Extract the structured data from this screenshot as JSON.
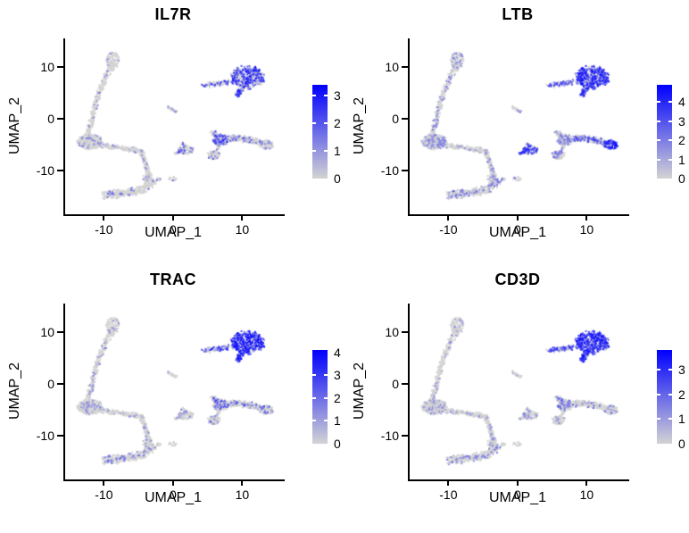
{
  "figure": {
    "kind": "single-cell feature plot grid",
    "genes": [
      "IL7R",
      "LTB",
      "TRAC",
      "CD3D"
    ]
  },
  "chart_data": {
    "type": "scatter",
    "xlabel": "UMAP_1",
    "ylabel": "UMAP_2",
    "x_ticks": [
      -10,
      0,
      10
    ],
    "y_ticks": [
      10,
      0,
      -10
    ],
    "xlim": [
      -15.6,
      16.1
    ],
    "ylim": [
      -18.5,
      15.5
    ],
    "grid": false,
    "point_color_low": "#D3D3D3",
    "point_color_high": "#0000FF",
    "legend_position": "right",
    "panels": [
      {
        "title": "IL7R",
        "colorbar_max": 3.4,
        "colorbar_ticks": [
          0,
          1,
          2,
          3
        ],
        "expression": {
          "leftArm": [
            0.06,
            0.4,
            1.6
          ],
          "leftBlob": [
            0.07,
            0.4,
            1.6
          ],
          "horizArm": [
            0.05,
            0.4,
            1.3
          ],
          "descArm": [
            0.07,
            0.4,
            1.6
          ],
          "bottomBlob": [
            0.08,
            0.4,
            2.0
          ],
          "sliver": [
            0.08,
            0.4,
            1.2
          ],
          "midCluster": [
            0.2,
            0.6,
            2.2
          ],
          "head": [
            0.5,
            0.8,
            3.2
          ],
          "neck": [
            0.4,
            0.8,
            2.6
          ],
          "rightBlob": [
            0.3,
            0.6,
            2.6
          ],
          "lowerLobe": [
            0.18,
            0.5,
            2.0
          ],
          "rightArm": [
            0.15,
            0.5,
            2.2
          ],
          "rightTip": [
            0.15,
            0.5,
            2.0
          ]
        }
      },
      {
        "title": "LTB",
        "colorbar_max": 4.9,
        "colorbar_ticks": [
          0,
          1,
          2,
          3,
          4
        ],
        "expression": {
          "leftArm": [
            0.18,
            0.5,
            2.2
          ],
          "leftBlob": [
            0.22,
            0.5,
            2.2
          ],
          "horizArm": [
            0.12,
            0.5,
            1.8
          ],
          "descArm": [
            0.16,
            0.5,
            2.2
          ],
          "bottomBlob": [
            0.2,
            0.5,
            2.6
          ],
          "sliver": [
            0.2,
            0.6,
            2.2
          ],
          "midCluster": [
            0.52,
            1.0,
            4.2
          ],
          "head": [
            0.78,
            1.2,
            4.6
          ],
          "neck": [
            0.6,
            1.0,
            3.6
          ],
          "rightBlob": [
            0.28,
            0.6,
            2.6
          ],
          "lowerLobe": [
            0.25,
            0.6,
            2.6
          ],
          "rightArm": [
            0.4,
            0.8,
            3.8
          ],
          "rightTip": [
            0.85,
            1.5,
            4.7
          ]
        }
      },
      {
        "title": "TRAC",
        "colorbar_max": 4.1,
        "colorbar_ticks": [
          0,
          1,
          2,
          3,
          4
        ],
        "expression": {
          "leftArm": [
            0.09,
            0.4,
            1.6
          ],
          "leftBlob": [
            0.11,
            0.4,
            1.6
          ],
          "horizArm": [
            0.07,
            0.4,
            1.4
          ],
          "descArm": [
            0.1,
            0.4,
            1.8
          ],
          "bottomBlob": [
            0.13,
            0.4,
            2.2
          ],
          "sliver": [
            0.1,
            0.4,
            1.2
          ],
          "midCluster": [
            0.16,
            0.5,
            2.0
          ],
          "head": [
            0.82,
            1.4,
            4.0
          ],
          "neck": [
            0.55,
            1.0,
            3.2
          ],
          "rightBlob": [
            0.26,
            0.6,
            3.0
          ],
          "lowerLobe": [
            0.16,
            0.5,
            2.2
          ],
          "rightArm": [
            0.16,
            0.5,
            2.6
          ],
          "rightTip": [
            0.2,
            0.6,
            2.6
          ]
        }
      },
      {
        "title": "CD3D",
        "colorbar_max": 3.8,
        "colorbar_ticks": [
          0,
          1,
          2,
          3
        ],
        "expression": {
          "leftArm": [
            0.11,
            0.3,
            1.5
          ],
          "leftBlob": [
            0.13,
            0.3,
            1.5
          ],
          "horizArm": [
            0.09,
            0.3,
            1.3
          ],
          "descArm": [
            0.11,
            0.3,
            1.6
          ],
          "bottomBlob": [
            0.16,
            0.3,
            1.8
          ],
          "sliver": [
            0.1,
            0.3,
            1.1
          ],
          "midCluster": [
            0.16,
            0.4,
            1.6
          ],
          "head": [
            0.88,
            1.4,
            3.6
          ],
          "neck": [
            0.6,
            1.0,
            3.0
          ],
          "rightBlob": [
            0.22,
            0.5,
            2.2
          ],
          "lowerLobe": [
            0.13,
            0.4,
            1.6
          ],
          "rightArm": [
            0.13,
            0.4,
            2.0
          ],
          "rightTip": [
            0.12,
            0.4,
            1.6
          ]
        }
      }
    ],
    "clusters": [
      {
        "g": "leftArm",
        "shape": "ellipse",
        "c": [
          -8.7,
          11.2
        ],
        "r": [
          1.0,
          1.8
        ],
        "n": 90
      },
      {
        "g": "leftArm",
        "shape": "capsule",
        "pts": [
          [
            -8.8,
            11.0
          ],
          [
            -9.3,
            9.3
          ],
          [
            -10.0,
            7.2
          ],
          [
            -10.7,
            4.8
          ],
          [
            -11.2,
            2.6
          ],
          [
            -11.6,
            0.6
          ],
          [
            -12.0,
            -1.4
          ],
          [
            -12.2,
            -3.1
          ]
        ],
        "w": 0.55,
        "n": 260
      },
      {
        "g": "leftBlob",
        "shape": "ellipse",
        "c": [
          -12.0,
          -4.5
        ],
        "r": [
          1.75,
          1.4
        ],
        "n": 335
      },
      {
        "g": "horizArm",
        "shape": "capsule",
        "pts": [
          [
            -10.3,
            -5.2
          ],
          [
            -8.5,
            -5.5
          ],
          [
            -6.8,
            -5.8
          ],
          [
            -5.2,
            -6.2
          ],
          [
            -4.5,
            -6.5
          ]
        ],
        "w": 0.5,
        "n": 150
      },
      {
        "g": "descArm",
        "shape": "capsule",
        "pts": [
          [
            -4.5,
            -6.6
          ],
          [
            -4.2,
            -7.8
          ],
          [
            -3.9,
            -9.2
          ],
          [
            -3.6,
            -10.6
          ],
          [
            -3.4,
            -11.6
          ]
        ],
        "w": 0.5,
        "n": 125
      },
      {
        "g": "descArm",
        "shape": "ellipse",
        "c": [
          -3.6,
          -11.4
        ],
        "r": [
          0.8,
          0.7
        ],
        "n": 40
      },
      {
        "g": "bottomBlob",
        "shape": "capsule",
        "pts": [
          [
            -10.1,
            -14.7
          ],
          [
            -8.5,
            -14.6
          ],
          [
            -6.8,
            -14.3
          ],
          [
            -5.3,
            -14.0
          ],
          [
            -4.3,
            -13.5
          ],
          [
            -3.4,
            -12.6
          ],
          [
            -2.7,
            -11.9
          ]
        ],
        "w": 0.8,
        "n": 360
      },
      {
        "g": "bottomBlob",
        "shape": "capsule",
        "pts": [
          [
            -2.4,
            -11.8
          ],
          [
            -1.8,
            -11.6
          ]
        ],
        "w": 0.3,
        "n": 14
      },
      {
        "g": "bottomBlob",
        "shape": "ellipse",
        "c": [
          -0.1,
          -11.7
        ],
        "r": [
          0.55,
          0.5
        ],
        "n": 16
      },
      {
        "g": "sliver",
        "shape": "capsule",
        "pts": [
          [
            -0.85,
            2.25
          ],
          [
            0.5,
            1.35
          ]
        ],
        "w": 0.28,
        "n": 26
      },
      {
        "g": "midCluster",
        "shape": "ellipse",
        "c": [
          1.85,
          -6.05
        ],
        "r": [
          1.1,
          0.8
        ],
        "n": 100
      },
      {
        "g": "midCluster",
        "shape": "capsule",
        "pts": [
          [
            0.35,
            -6.8
          ],
          [
            1.2,
            -6.3
          ]
        ],
        "w": 0.3,
        "n": 25
      },
      {
        "g": "midCluster",
        "shape": "ellipse",
        "c": [
          1.6,
          -4.9
        ],
        "r": [
          0.5,
          0.35
        ],
        "n": 10
      },
      {
        "g": "head",
        "shape": "ellipse",
        "c": [
          10.75,
          7.95
        ],
        "r": [
          2.4,
          2.15
        ],
        "n": 400
      },
      {
        "g": "head",
        "shape": "capsule",
        "pts": [
          [
            9.9,
            6.0
          ],
          [
            9.35,
            4.45
          ]
        ],
        "w": 0.6,
        "n": 55
      },
      {
        "g": "neck",
        "shape": "capsule",
        "pts": [
          [
            4.35,
            6.3
          ],
          [
            5.6,
            6.65
          ],
          [
            7.0,
            6.9
          ],
          [
            8.3,
            7.1
          ]
        ],
        "w": 0.5,
        "n": 85
      },
      {
        "g": "rightBlob",
        "shape": "ellipse",
        "c": [
          6.9,
          -4.1
        ],
        "r": [
          1.15,
          1.05
        ],
        "n": 165
      },
      {
        "g": "rightBlob",
        "shape": "capsule",
        "pts": [
          [
            5.6,
            -2.45
          ],
          [
            6.4,
            -3.4
          ]
        ],
        "w": 0.45,
        "n": 45
      },
      {
        "g": "lowerLobe",
        "shape": "capsule",
        "pts": [
          [
            6.6,
            -5.2
          ],
          [
            6.1,
            -6.5
          ]
        ],
        "w": 0.4,
        "n": 20
      },
      {
        "g": "lowerLobe",
        "shape": "ellipse",
        "c": [
          5.9,
          -7.0
        ],
        "r": [
          0.95,
          0.85
        ],
        "n": 72
      },
      {
        "g": "rightArm",
        "shape": "capsule",
        "pts": [
          [
            8.05,
            -3.85
          ],
          [
            9.6,
            -3.75
          ],
          [
            11.2,
            -4.15
          ],
          [
            12.4,
            -4.55
          ]
        ],
        "w": 0.6,
        "n": 190
      },
      {
        "g": "rightTip",
        "shape": "ellipse",
        "c": [
          13.5,
          -5.0
        ],
        "r": [
          1.05,
          0.85
        ],
        "n": 92
      }
    ]
  }
}
